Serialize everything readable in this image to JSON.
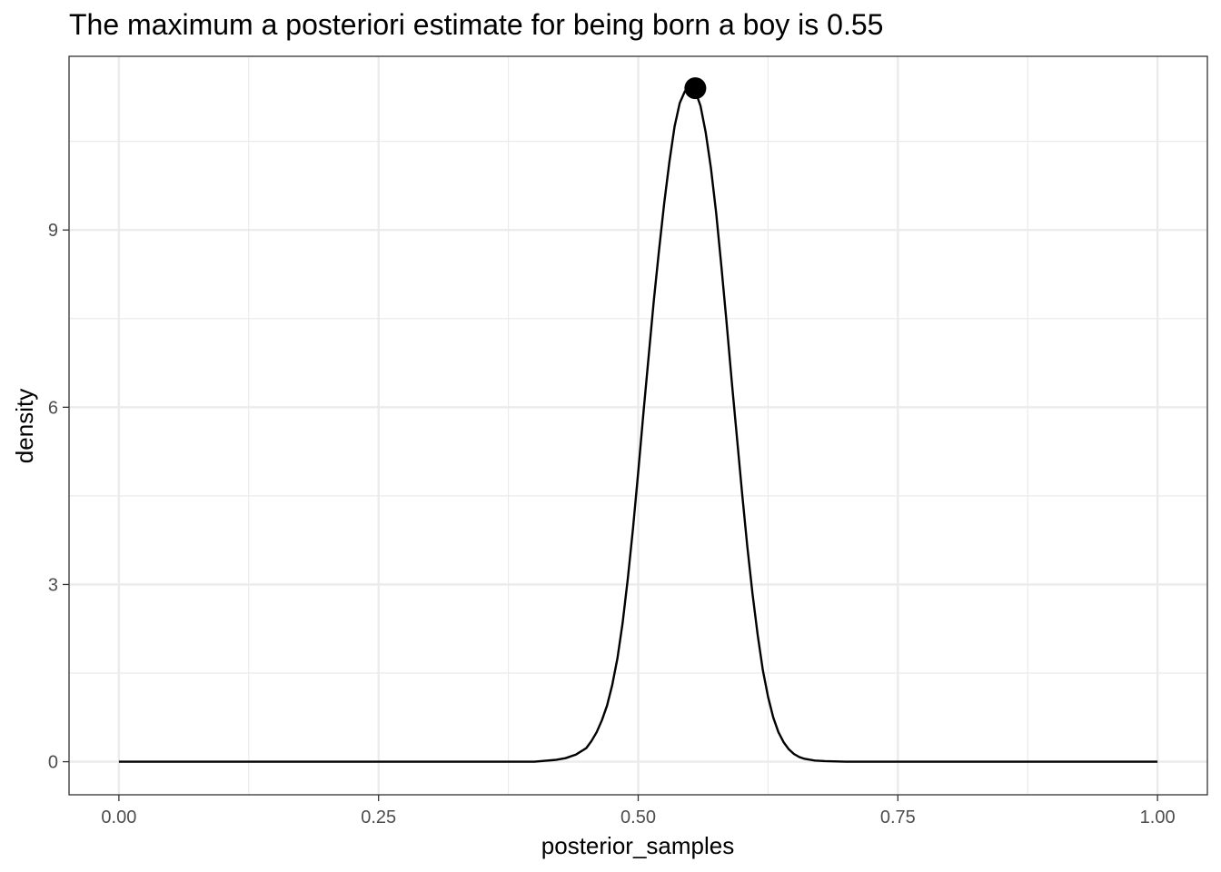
{
  "chart_data": {
    "type": "line",
    "title": "The maximum a posteriori estimate for being born a boy is 0.55",
    "xlabel": "posterior_samples",
    "ylabel": "density",
    "xlim": [
      -0.048,
      1.048
    ],
    "ylim": [
      -0.56,
      11.94
    ],
    "x_ticks": [
      {
        "value": 0,
        "label": "0.00"
      },
      {
        "value": 0.25,
        "label": "0.25"
      },
      {
        "value": 0.5,
        "label": "0.50"
      },
      {
        "value": 0.75,
        "label": "0.75"
      },
      {
        "value": 1,
        "label": "1.00"
      }
    ],
    "x_minor": [
      0.125,
      0.375,
      0.625,
      0.875
    ],
    "y_ticks": [
      {
        "value": 0,
        "label": "0"
      },
      {
        "value": 3,
        "label": "3"
      },
      {
        "value": 6,
        "label": "6"
      },
      {
        "value": 9,
        "label": "9"
      }
    ],
    "y_minor": [
      1.5,
      4.5,
      7.5,
      10.5
    ],
    "grid": true,
    "legend": "none",
    "series": [
      {
        "line_color": "#000000",
        "x": [
          0.0,
          0.2,
          0.4,
          0.42,
          0.43,
          0.44,
          0.45,
          0.455,
          0.46,
          0.465,
          0.47,
          0.475,
          0.48,
          0.485,
          0.49,
          0.495,
          0.5,
          0.505,
          0.51,
          0.515,
          0.52,
          0.525,
          0.53,
          0.535,
          0.54,
          0.545,
          0.55,
          0.555,
          0.56,
          0.565,
          0.57,
          0.575,
          0.58,
          0.585,
          0.59,
          0.595,
          0.6,
          0.605,
          0.61,
          0.615,
          0.62,
          0.625,
          0.63,
          0.635,
          0.64,
          0.645,
          0.65,
          0.655,
          0.66,
          0.67,
          0.68,
          0.7,
          0.75,
          0.8,
          1.0
        ],
        "y": [
          0.0,
          0.0,
          0.0,
          0.03,
          0.06,
          0.12,
          0.23,
          0.35,
          0.5,
          0.7,
          0.95,
          1.3,
          1.75,
          2.35,
          3.1,
          3.95,
          4.9,
          5.9,
          6.85,
          7.8,
          8.65,
          9.45,
          10.15,
          10.75,
          11.15,
          11.35,
          11.4,
          11.35,
          11.1,
          10.65,
          10.05,
          9.3,
          8.4,
          7.45,
          6.45,
          5.5,
          4.55,
          3.65,
          2.85,
          2.15,
          1.55,
          1.1,
          0.75,
          0.5,
          0.33,
          0.21,
          0.13,
          0.08,
          0.05,
          0.02,
          0.01,
          0.0,
          0.0,
          0.0,
          0.0
        ]
      }
    ],
    "points": [
      {
        "x": 0.555,
        "y": 11.4,
        "color": "#000000"
      }
    ],
    "colors": {
      "panel_border": "#333333",
      "grid_major": "#ebebeb",
      "grid_minor": "#ebebeb",
      "tick": "#333333"
    }
  }
}
